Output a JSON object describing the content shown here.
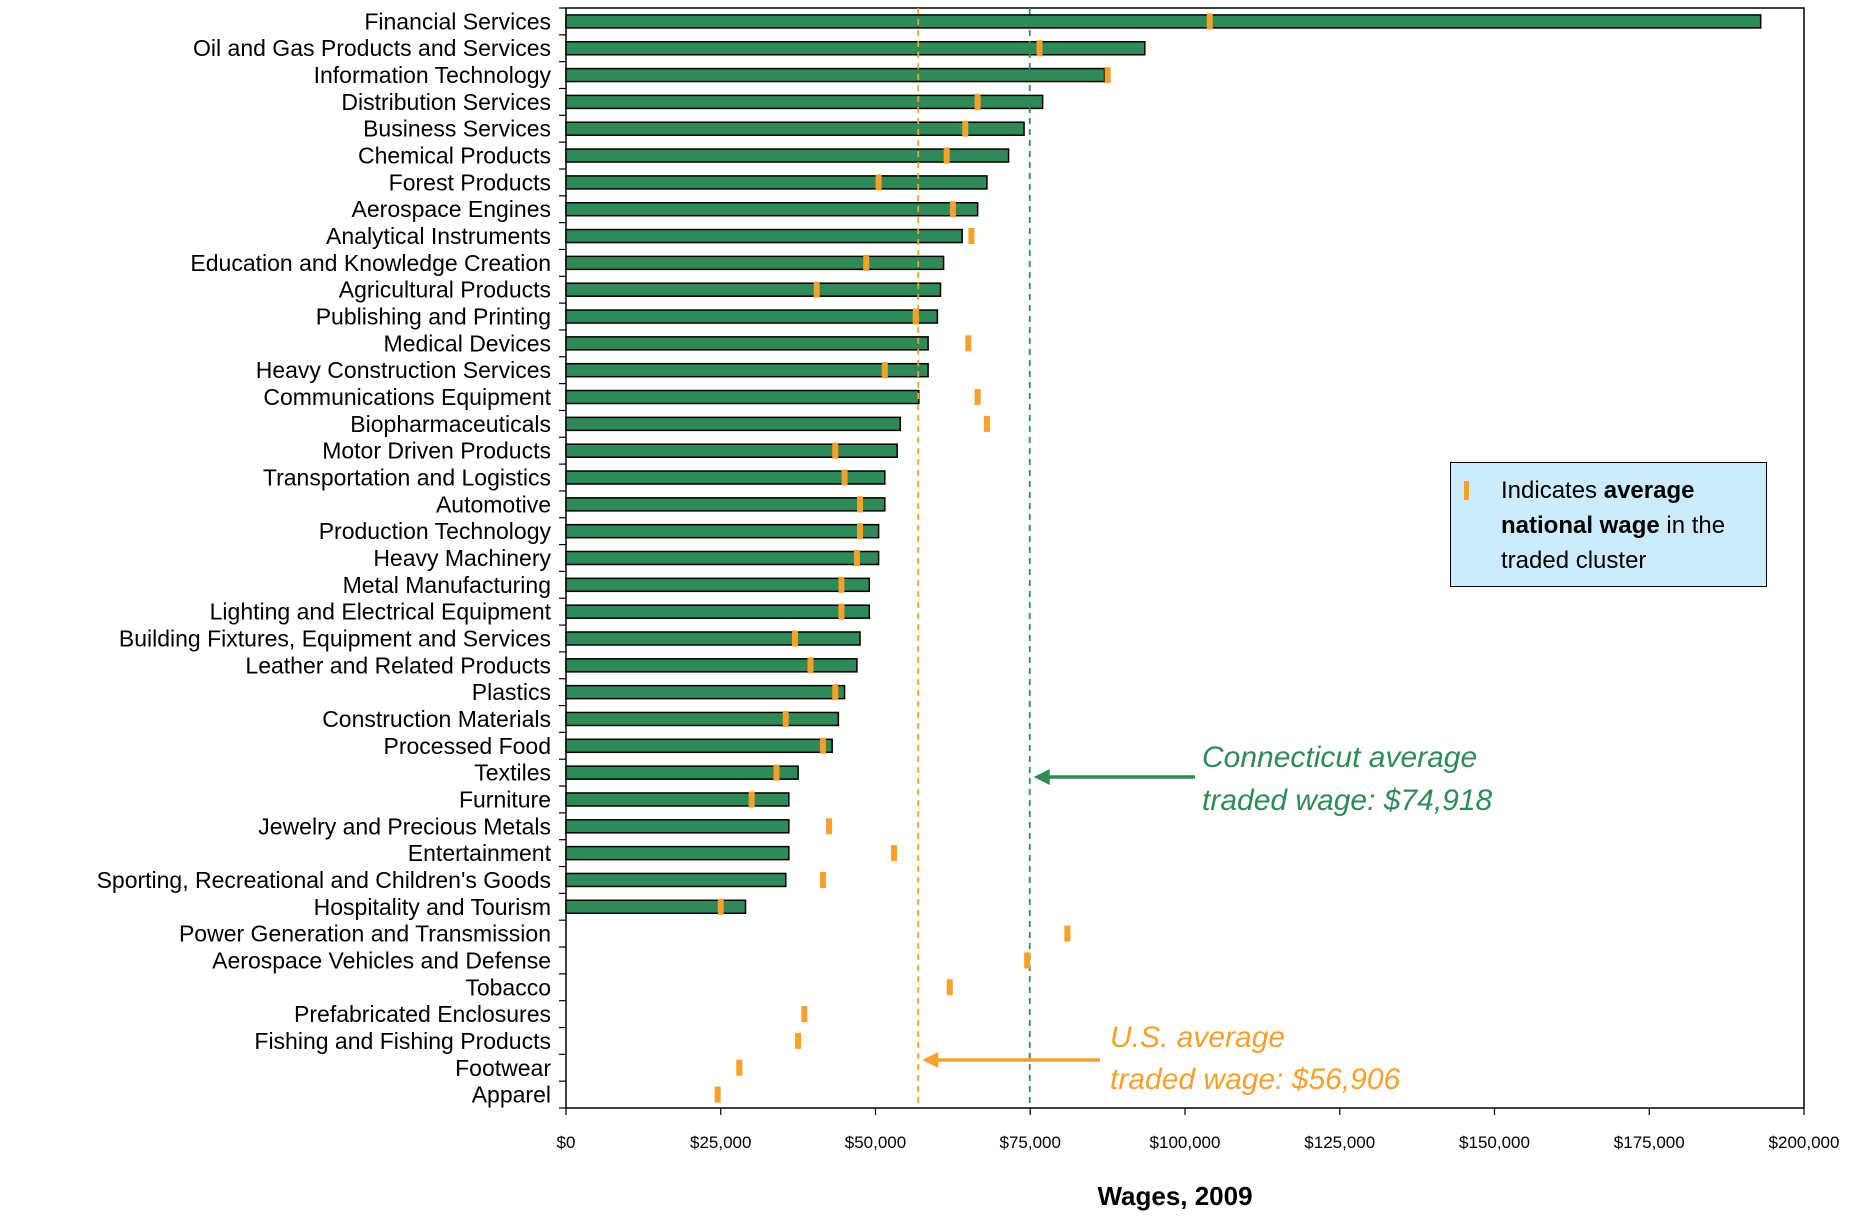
{
  "chart_data": {
    "type": "bar",
    "orientation": "horizontal",
    "categories": [
      "Financial Services",
      "Oil and Gas Products and Services",
      "Information Technology",
      "Distribution Services",
      "Business Services",
      "Chemical Products",
      "Forest Products",
      "Aerospace Engines",
      "Analytical Instruments",
      "Education and Knowledge Creation",
      "Agricultural Products",
      "Publishing and Printing",
      "Medical Devices",
      "Heavy Construction Services",
      "Communications Equipment",
      "Biopharmaceuticals",
      "Motor Driven Products",
      "Transportation and Logistics",
      "Automotive",
      "Production Technology",
      "Heavy Machinery",
      "Metal Manufacturing",
      "Lighting and Electrical Equipment",
      "Building Fixtures, Equipment and Services",
      "Leather and Related Products",
      "Plastics",
      "Construction Materials",
      "Processed Food",
      "Textiles",
      "Furniture",
      "Jewelry and Precious Metals",
      "Entertainment",
      "Sporting, Recreational and Children's Goods",
      "Hospitality and Tourism",
      "Power Generation and Transmission",
      "Aerospace Vehicles and Defense",
      "Tobacco",
      "Prefabricated Enclosures",
      "Fishing and Fishing Products",
      "Footwear",
      "Apparel"
    ],
    "series": [
      {
        "values": [
          193000,
          93500,
          87000,
          77000,
          74000,
          71500,
          68000,
          66500,
          64000,
          61000,
          60500,
          60000,
          58500,
          58500,
          57000,
          54000,
          53500,
          51500,
          51500,
          50500,
          50500,
          49000,
          49000,
          47500,
          47000,
          45000,
          44000,
          43000,
          37500,
          36000,
          36000,
          36000,
          35500,
          29000,
          null,
          null,
          null,
          null,
          null,
          null,
          null
        ],
        "color": "#2e8b57"
      },
      {
        "values": [
          104000,
          76500,
          87500,
          66500,
          64500,
          61500,
          50500,
          62500,
          65500,
          48500,
          40500,
          56500,
          65000,
          51500,
          66500,
          68000,
          43500,
          45000,
          47500,
          47500,
          47000,
          44500,
          44500,
          37000,
          39500,
          43500,
          35500,
          41500,
          34000,
          30000,
          42500,
          53000,
          41500,
          25000,
          81000,
          74500,
          62000,
          38500,
          37500,
          28000,
          24500
        ],
        "color": "#f7a02a",
        "marker": "tick"
      }
    ],
    "xlabel": "Wages, 2009",
    "xlim": [
      0,
      200000
    ],
    "xticks": [
      "$0",
      "$25,000",
      "$50,000",
      "$75,000",
      "$100,000",
      "$125,000",
      "$150,000",
      "$175,000",
      "$200,000"
    ],
    "reference_lines": [
      {
        "value": 74918,
        "color": "#2e8b57",
        "style": "dashed",
        "label_line1": "Connecticut average",
        "label_line2": "traded wage: $74,918"
      },
      {
        "value": 56906,
        "color": "#f7a02a",
        "style": "dashed",
        "label_line1": "U.S. average",
        "label_line2": "traded wage: $56,906"
      }
    ],
    "grid": false,
    "legend": {
      "placement": "right",
      "marker_color": "#f7a02a",
      "text_parts": [
        {
          "text": "Indicates ",
          "bold": false
        },
        {
          "text": "average national wage",
          "bold": true
        },
        {
          "text": " in the traded cluster",
          "bold": false
        }
      ]
    }
  }
}
